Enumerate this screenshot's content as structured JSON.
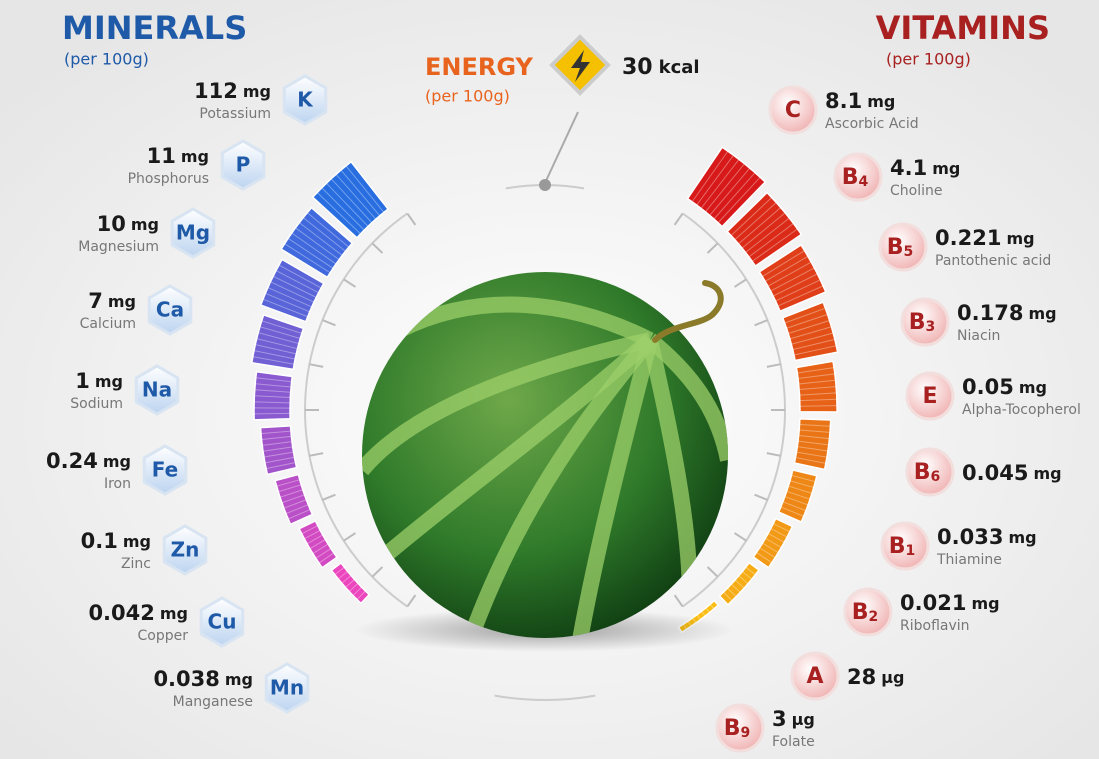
{
  "minerals": {
    "title": "MINERALS",
    "subtitle": "(per 100g)",
    "items": [
      {
        "value": "112",
        "unit": "mg",
        "name": "Potassium",
        "symbol": "K"
      },
      {
        "value": "11",
        "unit": "mg",
        "name": "Phosphorus",
        "symbol": "P"
      },
      {
        "value": "10",
        "unit": "mg",
        "name": "Magnesium",
        "symbol": "Mg"
      },
      {
        "value": "7",
        "unit": "mg",
        "name": "Calcium",
        "symbol": "Ca"
      },
      {
        "value": "1",
        "unit": "mg",
        "name": "Sodium",
        "symbol": "Na"
      },
      {
        "value": "0.24",
        "unit": "mg",
        "name": "Iron",
        "symbol": "Fe"
      },
      {
        "value": "0.1",
        "unit": "mg",
        "name": "Zinc",
        "symbol": "Zn"
      },
      {
        "value": "0.042",
        "unit": "mg",
        "name": "Copper",
        "symbol": "Cu"
      },
      {
        "value": "0.038",
        "unit": "mg",
        "name": "Manganese",
        "symbol": "Mn"
      }
    ]
  },
  "energy": {
    "title": "ENERGY",
    "subtitle": "(per 100g)",
    "value": "30",
    "unit": "kcal"
  },
  "vitamins": {
    "title": "VITAMINS",
    "subtitle": "(per 100g)",
    "items": [
      {
        "value": "8.1",
        "unit": "mg",
        "name": "Ascorbic Acid",
        "letter": "C",
        "sub": null
      },
      {
        "value": "4.1",
        "unit": "mg",
        "name": "Choline",
        "letter": "B",
        "sub": "4"
      },
      {
        "value": "0.221",
        "unit": "mg",
        "name": "Pantothenic acid",
        "letter": "B",
        "sub": "5"
      },
      {
        "value": "0.178",
        "unit": "mg",
        "name": "Niacin",
        "letter": "B",
        "sub": "3"
      },
      {
        "value": "0.05",
        "unit": "mg",
        "name": "Alpha-Tocopherol",
        "letter": "E",
        "sub": null
      },
      {
        "value": "0.045",
        "unit": "mg",
        "name": null,
        "letter": "B",
        "sub": "6"
      },
      {
        "value": "0.033",
        "unit": "mg",
        "name": "Thiamine",
        "letter": "B",
        "sub": "1"
      },
      {
        "value": "0.021",
        "unit": "mg",
        "name": "Riboflavin",
        "letter": "B",
        "sub": "2"
      },
      {
        "value": "28",
        "unit": "µg",
        "name": null,
        "letter": "A",
        "sub": null
      },
      {
        "value": "3",
        "unit": "µg",
        "name": "Folate",
        "letter": "B",
        "sub": "9"
      }
    ]
  }
}
